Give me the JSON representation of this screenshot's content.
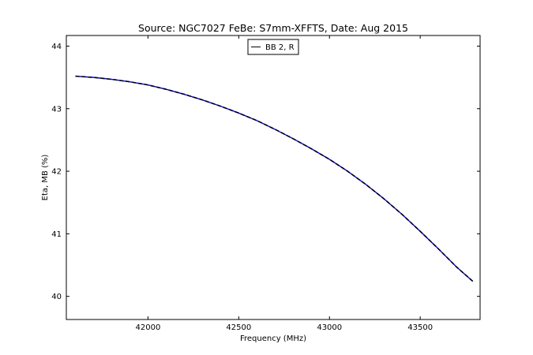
{
  "chart_data": {
    "type": "line",
    "title": "Source: NGC7027 FeBe: S7mm-XFFTS, Date: Aug 2015",
    "xlabel": "Frequency (MHz)",
    "ylabel": "Eta, MB (%)",
    "xlim": [
      41550,
      43830
    ],
    "ylim": [
      39.63,
      44.17
    ],
    "xticks": [
      42000,
      42500,
      43000,
      43500
    ],
    "yticks": [
      40,
      41,
      42,
      43,
      44
    ],
    "grid": false,
    "legend_position": "top-center",
    "series": [
      {
        "name": "BB 2, R",
        "color": "#0000ff",
        "style": "solid",
        "x": [
          41600,
          41700,
          41800,
          41900,
          42000,
          42100,
          42200,
          42300,
          42400,
          42500,
          42600,
          42700,
          42800,
          42900,
          43000,
          43100,
          43200,
          43300,
          43400,
          43500,
          43600,
          43700,
          43790
        ],
        "y": [
          43.52,
          43.5,
          43.47,
          43.43,
          43.38,
          43.31,
          43.23,
          43.14,
          43.04,
          42.93,
          42.81,
          42.67,
          42.52,
          42.36,
          42.19,
          42.0,
          41.79,
          41.56,
          41.31,
          41.04,
          40.76,
          40.47,
          40.24
        ]
      },
      {
        "name": "",
        "color": "#000000",
        "style": "dashed",
        "x": [
          41600,
          41700,
          41800,
          41900,
          42000,
          42100,
          42200,
          42300,
          42400,
          42500,
          42600,
          42700,
          42800,
          42900,
          43000,
          43100,
          43200,
          43300,
          43400,
          43500,
          43600,
          43700,
          43790
        ],
        "y": [
          43.52,
          43.5,
          43.47,
          43.43,
          43.38,
          43.31,
          43.23,
          43.14,
          43.04,
          42.93,
          42.81,
          42.67,
          42.52,
          42.36,
          42.19,
          42.0,
          41.79,
          41.56,
          41.31,
          41.04,
          40.76,
          40.47,
          40.24
        ]
      }
    ],
    "legend": [
      {
        "label": "BB 2, R",
        "color": "#000000"
      }
    ]
  }
}
